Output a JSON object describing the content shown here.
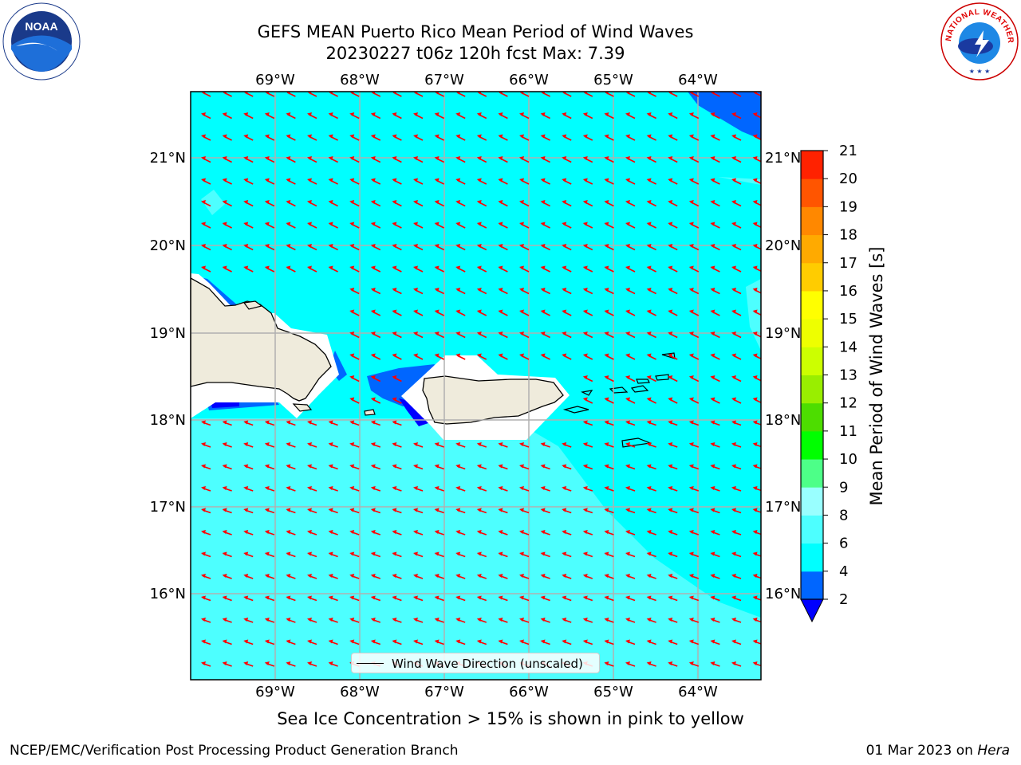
{
  "header": {
    "title_line1": "GEFS MEAN Puerto Rico Mean Period of Wind Waves",
    "title_line2": "20230227 t06z 120h fcst   Max: 7.39"
  },
  "logos": {
    "left": {
      "icon": "noaa-logo",
      "text": "NOAA"
    },
    "right": {
      "icon": "nws-logo",
      "text": "NATIONAL WEATHER SERVICE"
    }
  },
  "map": {
    "lon_ticks": [
      "69°W",
      "68°W",
      "67°W",
      "66°W",
      "65°W",
      "64°W"
    ],
    "lat_ticks": [
      "21°N",
      "20°N",
      "19°N",
      "18°N",
      "17°N",
      "16°N"
    ],
    "background_color": "#00ffff",
    "land_color": "#efebdc",
    "arrow_color": "#ff0000",
    "legend_label": "Wind Wave Direction (unscaled)"
  },
  "colorbar": {
    "label": "Mean Period of Wind Waves [s]",
    "ticks": [
      "2",
      "4",
      "6",
      "8",
      "9",
      "10",
      "11",
      "12",
      "13",
      "14",
      "15",
      "16",
      "17",
      "18",
      "19",
      "20",
      "21"
    ],
    "colors": [
      "#0000ff",
      "#0066ff",
      "#00ffff",
      "#4dffff",
      "#99ffff",
      "#4dff88",
      "#00ff00",
      "#4ddd00",
      "#99ee00",
      "#ccff00",
      "#eeff00",
      "#ffff00",
      "#ffcc00",
      "#ffaa00",
      "#ff8800",
      "#ff5500",
      "#ff2200",
      "#ff0000"
    ]
  },
  "footer": {
    "note": "Sea Ice Concentration > 15% is shown in pink to yellow",
    "left": "NCEP/EMC/Verification Post Processing Product Generation Branch",
    "right_prefix": "01 Mar 2023 on ",
    "right_host": "Hera"
  }
}
